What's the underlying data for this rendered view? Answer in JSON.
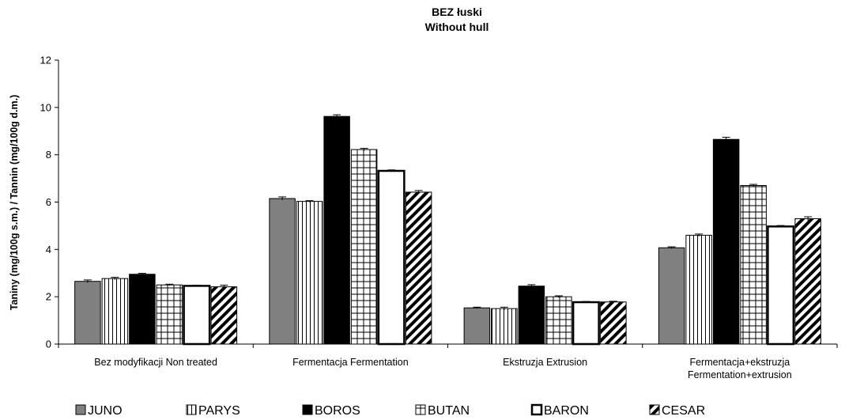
{
  "chart_data": {
    "type": "bar",
    "title": "BEZ  łuski",
    "subtitle": "Without hull",
    "xlabel": "",
    "ylabel": "Taniny (mg/100g s.m.) / Tannin  (mg/100g d.m.)",
    "ylim": [
      0,
      12
    ],
    "yticks": [
      "0",
      "2",
      "4",
      "6",
      "8",
      "10",
      "12"
    ],
    "grid": false,
    "legend_position": "bottom",
    "categories": [
      [
        "Bez modyfikacji Non treated"
      ],
      [
        "Fermentacja Fermentation"
      ],
      [
        "Ekstruzja Extrusion"
      ],
      [
        "Fermentacja+ekstruzja",
        "Fermentation+extrusion"
      ]
    ],
    "series": [
      {
        "name": "JUNO",
        "pattern": "solid-gray",
        "color": "#808080",
        "values": [
          2.65,
          6.15,
          1.53,
          4.07
        ],
        "errors": [
          0.06,
          0.07,
          0.03,
          0.04
        ]
      },
      {
        "name": "PARYS",
        "pattern": "vertical",
        "color": "#000000",
        "values": [
          2.77,
          6.03,
          1.5,
          4.6
        ],
        "errors": [
          0.05,
          0.03,
          0.06,
          0.05
        ]
      },
      {
        "name": "BOROS",
        "pattern": "solid-black",
        "color": "#000000",
        "values": [
          2.95,
          9.62,
          2.45,
          8.65
        ],
        "errors": [
          0.04,
          0.07,
          0.06,
          0.09
        ]
      },
      {
        "name": "BUTAN",
        "pattern": "grid",
        "color": "#000000",
        "values": [
          2.5,
          8.22,
          2.0,
          6.7
        ],
        "errors": [
          0.03,
          0.05,
          0.04,
          0.05
        ]
      },
      {
        "name": "BARON",
        "pattern": "open",
        "color": "#000000",
        "values": [
          2.46,
          7.32,
          1.77,
          4.97
        ],
        "errors": [
          0.03,
          0.04,
          0.03,
          0.04
        ]
      },
      {
        "name": "CESAR",
        "pattern": "diagonal",
        "color": "#000000",
        "values": [
          2.42,
          6.42,
          1.78,
          5.3
        ],
        "errors": [
          0.07,
          0.07,
          0.03,
          0.08
        ]
      }
    ]
  }
}
